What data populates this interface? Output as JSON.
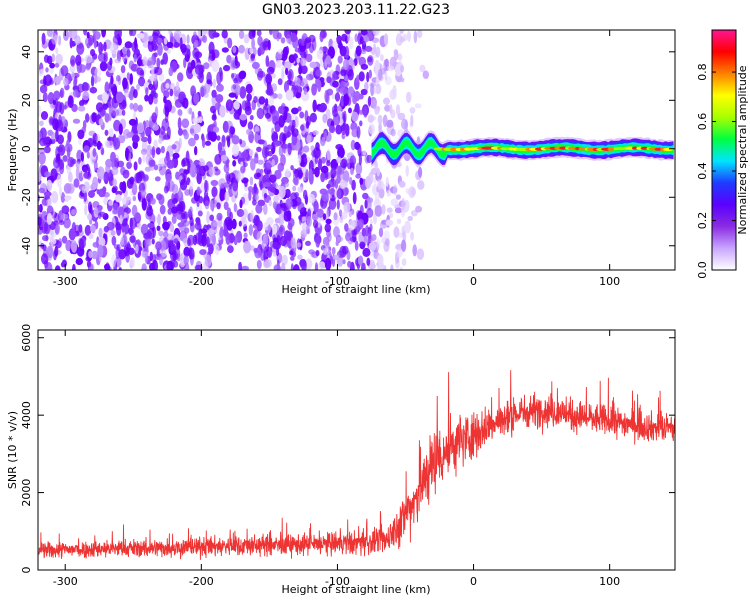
{
  "chart_data": [
    {
      "type": "heatmap",
      "title": "GN03.2023.203.11.22.G23",
      "xlabel": "Height of straight line (km)",
      "ylabel": "Frequency (Hz)",
      "xlim": [
        -320,
        148
      ],
      "ylim": [
        -50,
        49
      ],
      "xticks": [
        -300,
        -200,
        -100,
        0,
        100
      ],
      "yticks": [
        -40,
        -20,
        0,
        20,
        40
      ],
      "noise_region_km": [
        -320,
        -43
      ],
      "signal_onset_km": -75,
      "signal_frequency_hz": 0,
      "colorbar": {
        "label": "Normalized spectral amplitude",
        "range": [
          0.0,
          0.97
        ],
        "ticks": [
          0.0,
          0.2,
          0.4,
          0.6,
          0.8
        ],
        "colors": [
          "#ffffff",
          "#c9a5ff",
          "#8a2be2",
          "#5b00ff",
          "#1e3cff",
          "#00e5ff",
          "#00ff40",
          "#a8ff00",
          "#ffff00",
          "#ff8000",
          "#ff0000",
          "#ff1493"
        ]
      }
    },
    {
      "type": "line",
      "xlabel": "Height of straight line (km)",
      "ylabel": "SNR (10 * v/v)",
      "xlim": [
        -320,
        148
      ],
      "ylim": [
        0,
        6200
      ],
      "xticks": [
        -300,
        -200,
        -100,
        0,
        100
      ],
      "yticks": [
        0,
        2000,
        4000,
        6000
      ],
      "series": [
        {
          "name": "SNR",
          "color": "#ee3333",
          "x": [
            -320,
            -300,
            -280,
            -260,
            -240,
            -220,
            -200,
            -180,
            -160,
            -140,
            -120,
            -100,
            -80,
            -65,
            -55,
            -45,
            -38,
            -30,
            -20,
            -10,
            0,
            10,
            20,
            30,
            40,
            50,
            60,
            70,
            80,
            90,
            100,
            110,
            120,
            130,
            140,
            148
          ],
          "y": [
            500,
            520,
            540,
            560,
            560,
            580,
            600,
            620,
            640,
            640,
            660,
            680,
            700,
            760,
            1150,
            1700,
            2200,
            2800,
            3100,
            3350,
            3500,
            3700,
            3850,
            4000,
            4100,
            4150,
            4100,
            4000,
            3950,
            3900,
            3850,
            3800,
            3750,
            3700,
            3650,
            3650
          ],
          "noise_amplitude": [
            280,
            280,
            290,
            300,
            300,
            320,
            330,
            340,
            350,
            350,
            360,
            380,
            400,
            450,
            700,
            900,
            1050,
            1100,
            1050,
            950,
            800,
            650,
            620,
            600,
            580,
            560,
            550,
            540,
            530,
            520,
            510,
            500,
            500,
            490,
            480,
            480
          ]
        }
      ]
    }
  ]
}
